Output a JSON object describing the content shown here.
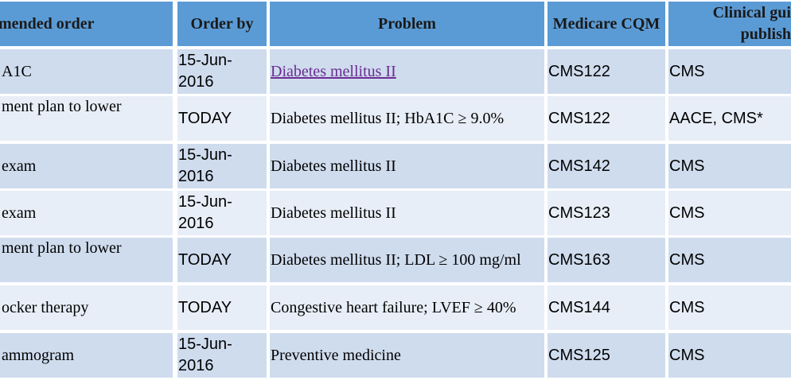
{
  "table": {
    "header": [
      "mended order",
      "Order by",
      "Problem",
      "Medicare CQM",
      "Clinical gui\npublish"
    ],
    "rows": [
      [
        "A1C",
        "15-Jun-2016",
        "Diabetes mellitus II",
        "CMS122",
        "CMS"
      ],
      [
        "ment plan to lower",
        "TODAY",
        "Diabetes mellitus II; HbA1C ≥ 9.0%",
        "CMS122",
        "AACE, CMS*"
      ],
      [
        "exam",
        "15-Jun-2016",
        "Diabetes mellitus II",
        "CMS142",
        "CMS"
      ],
      [
        "exam",
        "15-Jun-2016",
        "Diabetes mellitus II",
        "CMS123",
        "CMS"
      ],
      [
        "ment plan to lower",
        "TODAY",
        "Diabetes mellitus II; LDL ≥ 100 mg/ml",
        "CMS163",
        "CMS"
      ],
      [
        "ocker therapy",
        "TODAY",
        "Congestive heart failure; LVEF ≥ 40%",
        "CMS144",
        "CMS"
      ],
      [
        "ammogram",
        "15-Jun-2016",
        "Preventive medicine",
        "CMS125",
        "CMS"
      ]
    ]
  }
}
